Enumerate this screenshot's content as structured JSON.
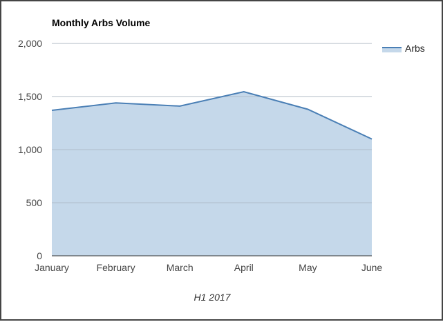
{
  "chart_data": {
    "type": "area",
    "title": "Monthly Arbs Volume",
    "xlabel": "H1 2017",
    "ylabel": "",
    "categories": [
      "January",
      "February",
      "March",
      "April",
      "May",
      "June"
    ],
    "series": [
      {
        "name": "Arbs",
        "values": [
          1370,
          1440,
          1410,
          1545,
          1380,
          1100
        ]
      }
    ],
    "ylim": [
      0,
      2000
    ],
    "yticks": [
      0,
      500,
      1000,
      1500,
      2000
    ],
    "ytick_labels": [
      "0",
      "500",
      "1,000",
      "1,500",
      "2,000"
    ],
    "grid": true,
    "legend": "right",
    "colors": {
      "line": "#4a7fb5",
      "fill": "#c5d8ea",
      "grid": "#cccccc",
      "axis": "#333333"
    }
  }
}
